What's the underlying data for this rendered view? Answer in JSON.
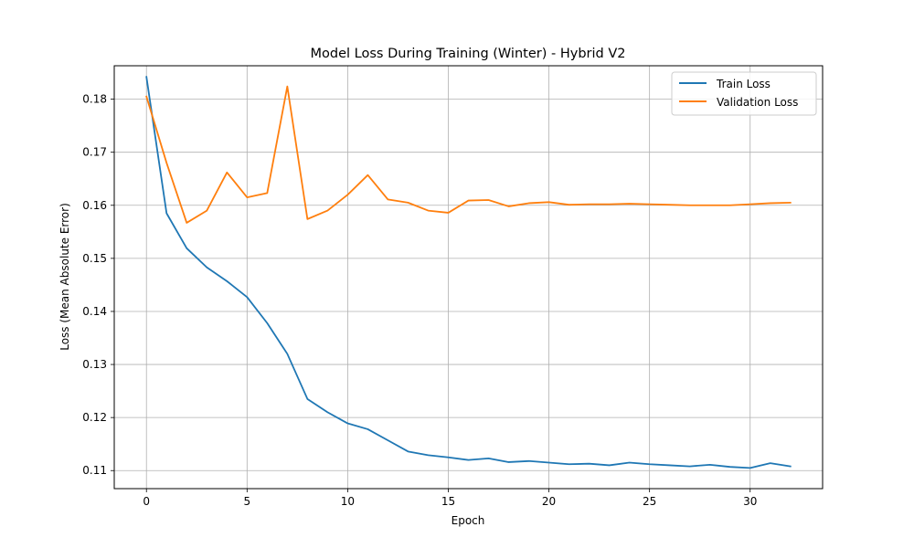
{
  "chart_data": {
    "type": "line",
    "title": "Model Loss During Training (Winter) - Hybrid V2",
    "xlabel": "Epoch",
    "ylabel": "Loss (Mean Absolute Error)",
    "xlim": [
      -1.6,
      33.6
    ],
    "ylim": [
      0.1066,
      0.1863
    ],
    "xticks": [
      0,
      5,
      10,
      15,
      20,
      25,
      30
    ],
    "yticks": [
      0.11,
      0.12,
      0.13,
      0.14,
      0.15,
      0.16,
      0.17,
      0.18
    ],
    "ytick_labels": [
      "0.11",
      "0.12",
      "0.13",
      "0.14",
      "0.15",
      "0.16",
      "0.17",
      "0.18"
    ],
    "grid": true,
    "legend_position": "top-right",
    "x": [
      0,
      1,
      2,
      3,
      4,
      5,
      6,
      7,
      8,
      9,
      10,
      11,
      12,
      13,
      14,
      15,
      16,
      17,
      18,
      19,
      20,
      21,
      22,
      23,
      24,
      25,
      26,
      27,
      28,
      29,
      30,
      31,
      32
    ],
    "series": [
      {
        "name": "Train Loss",
        "color": "#1f77b4",
        "values": [
          0.1842,
          0.1585,
          0.1519,
          0.1483,
          0.1457,
          0.1427,
          0.1378,
          0.132,
          0.1235,
          0.121,
          0.1189,
          0.1178,
          0.1157,
          0.1136,
          0.1129,
          0.1125,
          0.112,
          0.1123,
          0.1116,
          0.1118,
          0.1115,
          0.1112,
          0.1113,
          0.111,
          0.1115,
          0.1112,
          0.111,
          0.1108,
          0.1111,
          0.1107,
          0.1105,
          0.1114,
          0.1108
        ]
      },
      {
        "name": "Validation Loss",
        "color": "#ff7f0e",
        "values": [
          0.1805,
          0.168,
          0.1567,
          0.159,
          0.1662,
          0.1615,
          0.1623,
          0.1824,
          0.1574,
          0.159,
          0.162,
          0.1657,
          0.1611,
          0.1605,
          0.159,
          0.1586,
          0.1609,
          0.161,
          0.1598,
          0.1604,
          0.1606,
          0.1601,
          0.1602,
          0.1602,
          0.1603,
          0.1602,
          0.1601,
          0.16,
          0.16,
          0.16,
          0.1602,
          0.1604,
          0.1605
        ]
      }
    ]
  }
}
